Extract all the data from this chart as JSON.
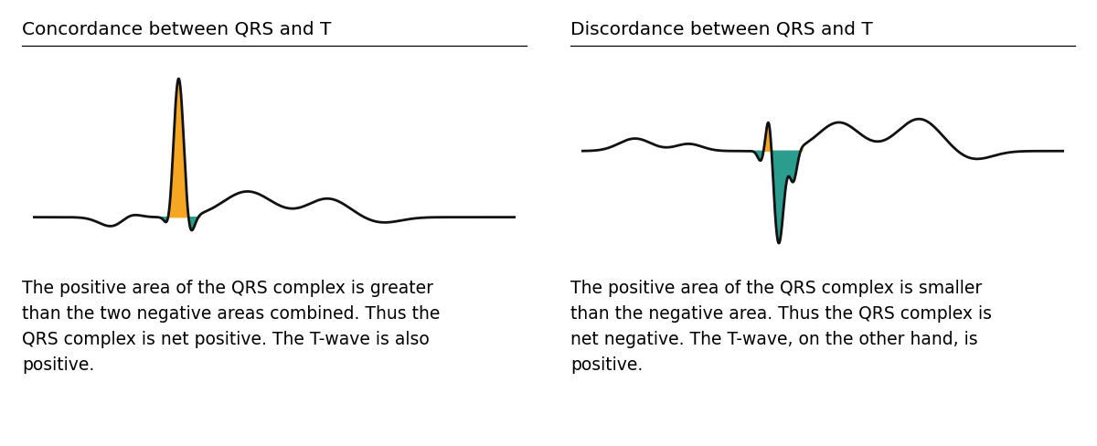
{
  "title_left": "Concordance between QRS and T",
  "title_right": "Discordance between QRS and T",
  "text_left": "The positive area of the QRS complex is greater\nthan the two negative areas combined. Thus the\nQRS complex is net positive. The T-wave is also\npositive.",
  "text_right": "The positive area of the QRS complex is smaller\nthan the negative area. Thus the QRS complex is\nnet negative. The T-wave, on the other hand, is\npositive.",
  "color_orange": "#F5A623",
  "color_teal": "#2A9D8F",
  "color_line": "#111111",
  "bg_color": "#ffffff",
  "title_fontsize": 14.5,
  "text_fontsize": 13.5
}
